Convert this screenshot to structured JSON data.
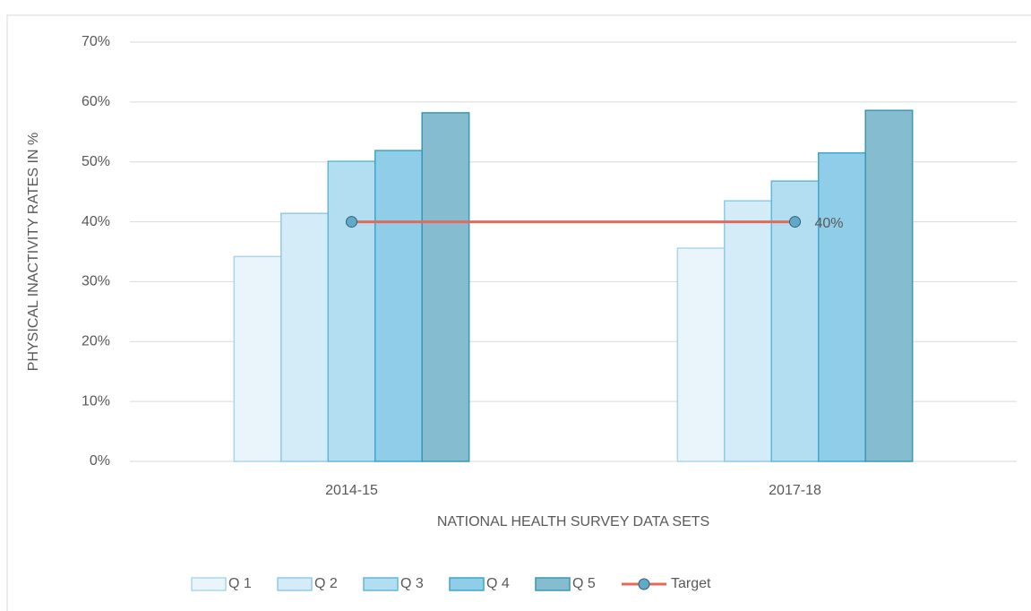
{
  "chart_data": {
    "type": "bar",
    "categories": [
      "2014-15",
      "2017-18"
    ],
    "series": [
      {
        "name": "Q 1",
        "color": "#eaf4fb",
        "border": "#a9d6ec",
        "values": [
          34.2,
          35.6
        ]
      },
      {
        "name": "Q 2",
        "color": "#d4ecf8",
        "border": "#8fcbe6",
        "values": [
          41.4,
          43.5
        ]
      },
      {
        "name": "Q 3",
        "color": "#b3def2",
        "border": "#5fb8dc",
        "values": [
          50.1,
          46.8
        ]
      },
      {
        "name": "Q 4",
        "color": "#8fcde8",
        "border": "#3ea5cc",
        "values": [
          51.9,
          51.5
        ]
      },
      {
        "name": "Q 5",
        "color": "#86bccf",
        "border": "#3a97b5",
        "values": [
          58.2,
          58.6
        ]
      },
      {
        "name": "Target",
        "type": "line",
        "color": "#e06b5a",
        "marker_color": "#5fa9c9",
        "values": [
          40,
          40
        ],
        "value_labels": [
          null,
          "40%"
        ]
      }
    ],
    "ylim": [
      0,
      70
    ],
    "yticks": [
      {
        "value": 0,
        "label": "0%"
      },
      {
        "value": 10,
        "label": "10%"
      },
      {
        "value": 20,
        "label": "20%"
      },
      {
        "value": 30,
        "label": "30%"
      },
      {
        "value": 40,
        "label": "40%"
      },
      {
        "value": 50,
        "label": "50%"
      },
      {
        "value": 60,
        "label": "60%"
      },
      {
        "value": 70,
        "label": "70%"
      }
    ],
    "y_label": "PHYSICAL INACTIVITY RATES IN %",
    "x_label": "NATIONAL HEALTH SURVEY DATA SETS",
    "grid": true,
    "legend": "bottom"
  }
}
